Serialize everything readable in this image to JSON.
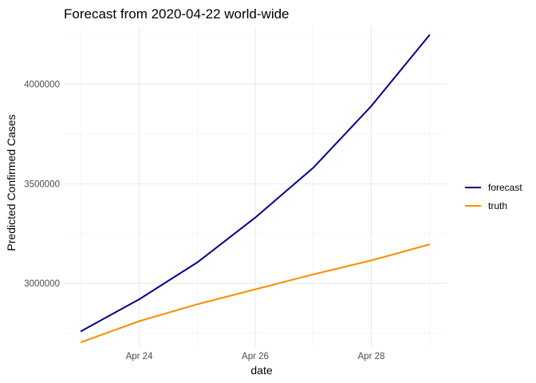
{
  "chart_data": {
    "type": "line",
    "title": "Forecast from 2020-04-22 world-wide",
    "xlabel": "date",
    "ylabel": "Predicted Confirmed Cases",
    "x": [
      "2020-04-23",
      "2020-04-24",
      "2020-04-25",
      "2020-04-26",
      "2020-04-27",
      "2020-04-28",
      "2020-04-29"
    ],
    "x_ticks": [
      {
        "date": "2020-04-24",
        "label": "Apr 24"
      },
      {
        "date": "2020-04-26",
        "label": "Apr 26"
      },
      {
        "date": "2020-04-28",
        "label": "Apr 28"
      }
    ],
    "y_ticks": [
      3000000,
      3500000,
      4000000
    ],
    "y_tick_labels": [
      "3000000",
      "3500000",
      "4000000"
    ],
    "xlim": [
      "2020-04-22T16:48",
      "2020-04-29T07:12"
    ],
    "ylim": [
      2680000,
      4290000
    ],
    "grid": true,
    "legend_position": "right",
    "series": [
      {
        "name": "forecast",
        "color": "#00008B",
        "values": [
          2760000,
          2920000,
          3105000,
          3330000,
          3580000,
          3890000,
          4245000
        ]
      },
      {
        "name": "truth",
        "color": "#FF8C00",
        "values": [
          2705000,
          2810000,
          2895000,
          2970000,
          3045000,
          3115000,
          3195000
        ]
      }
    ]
  }
}
